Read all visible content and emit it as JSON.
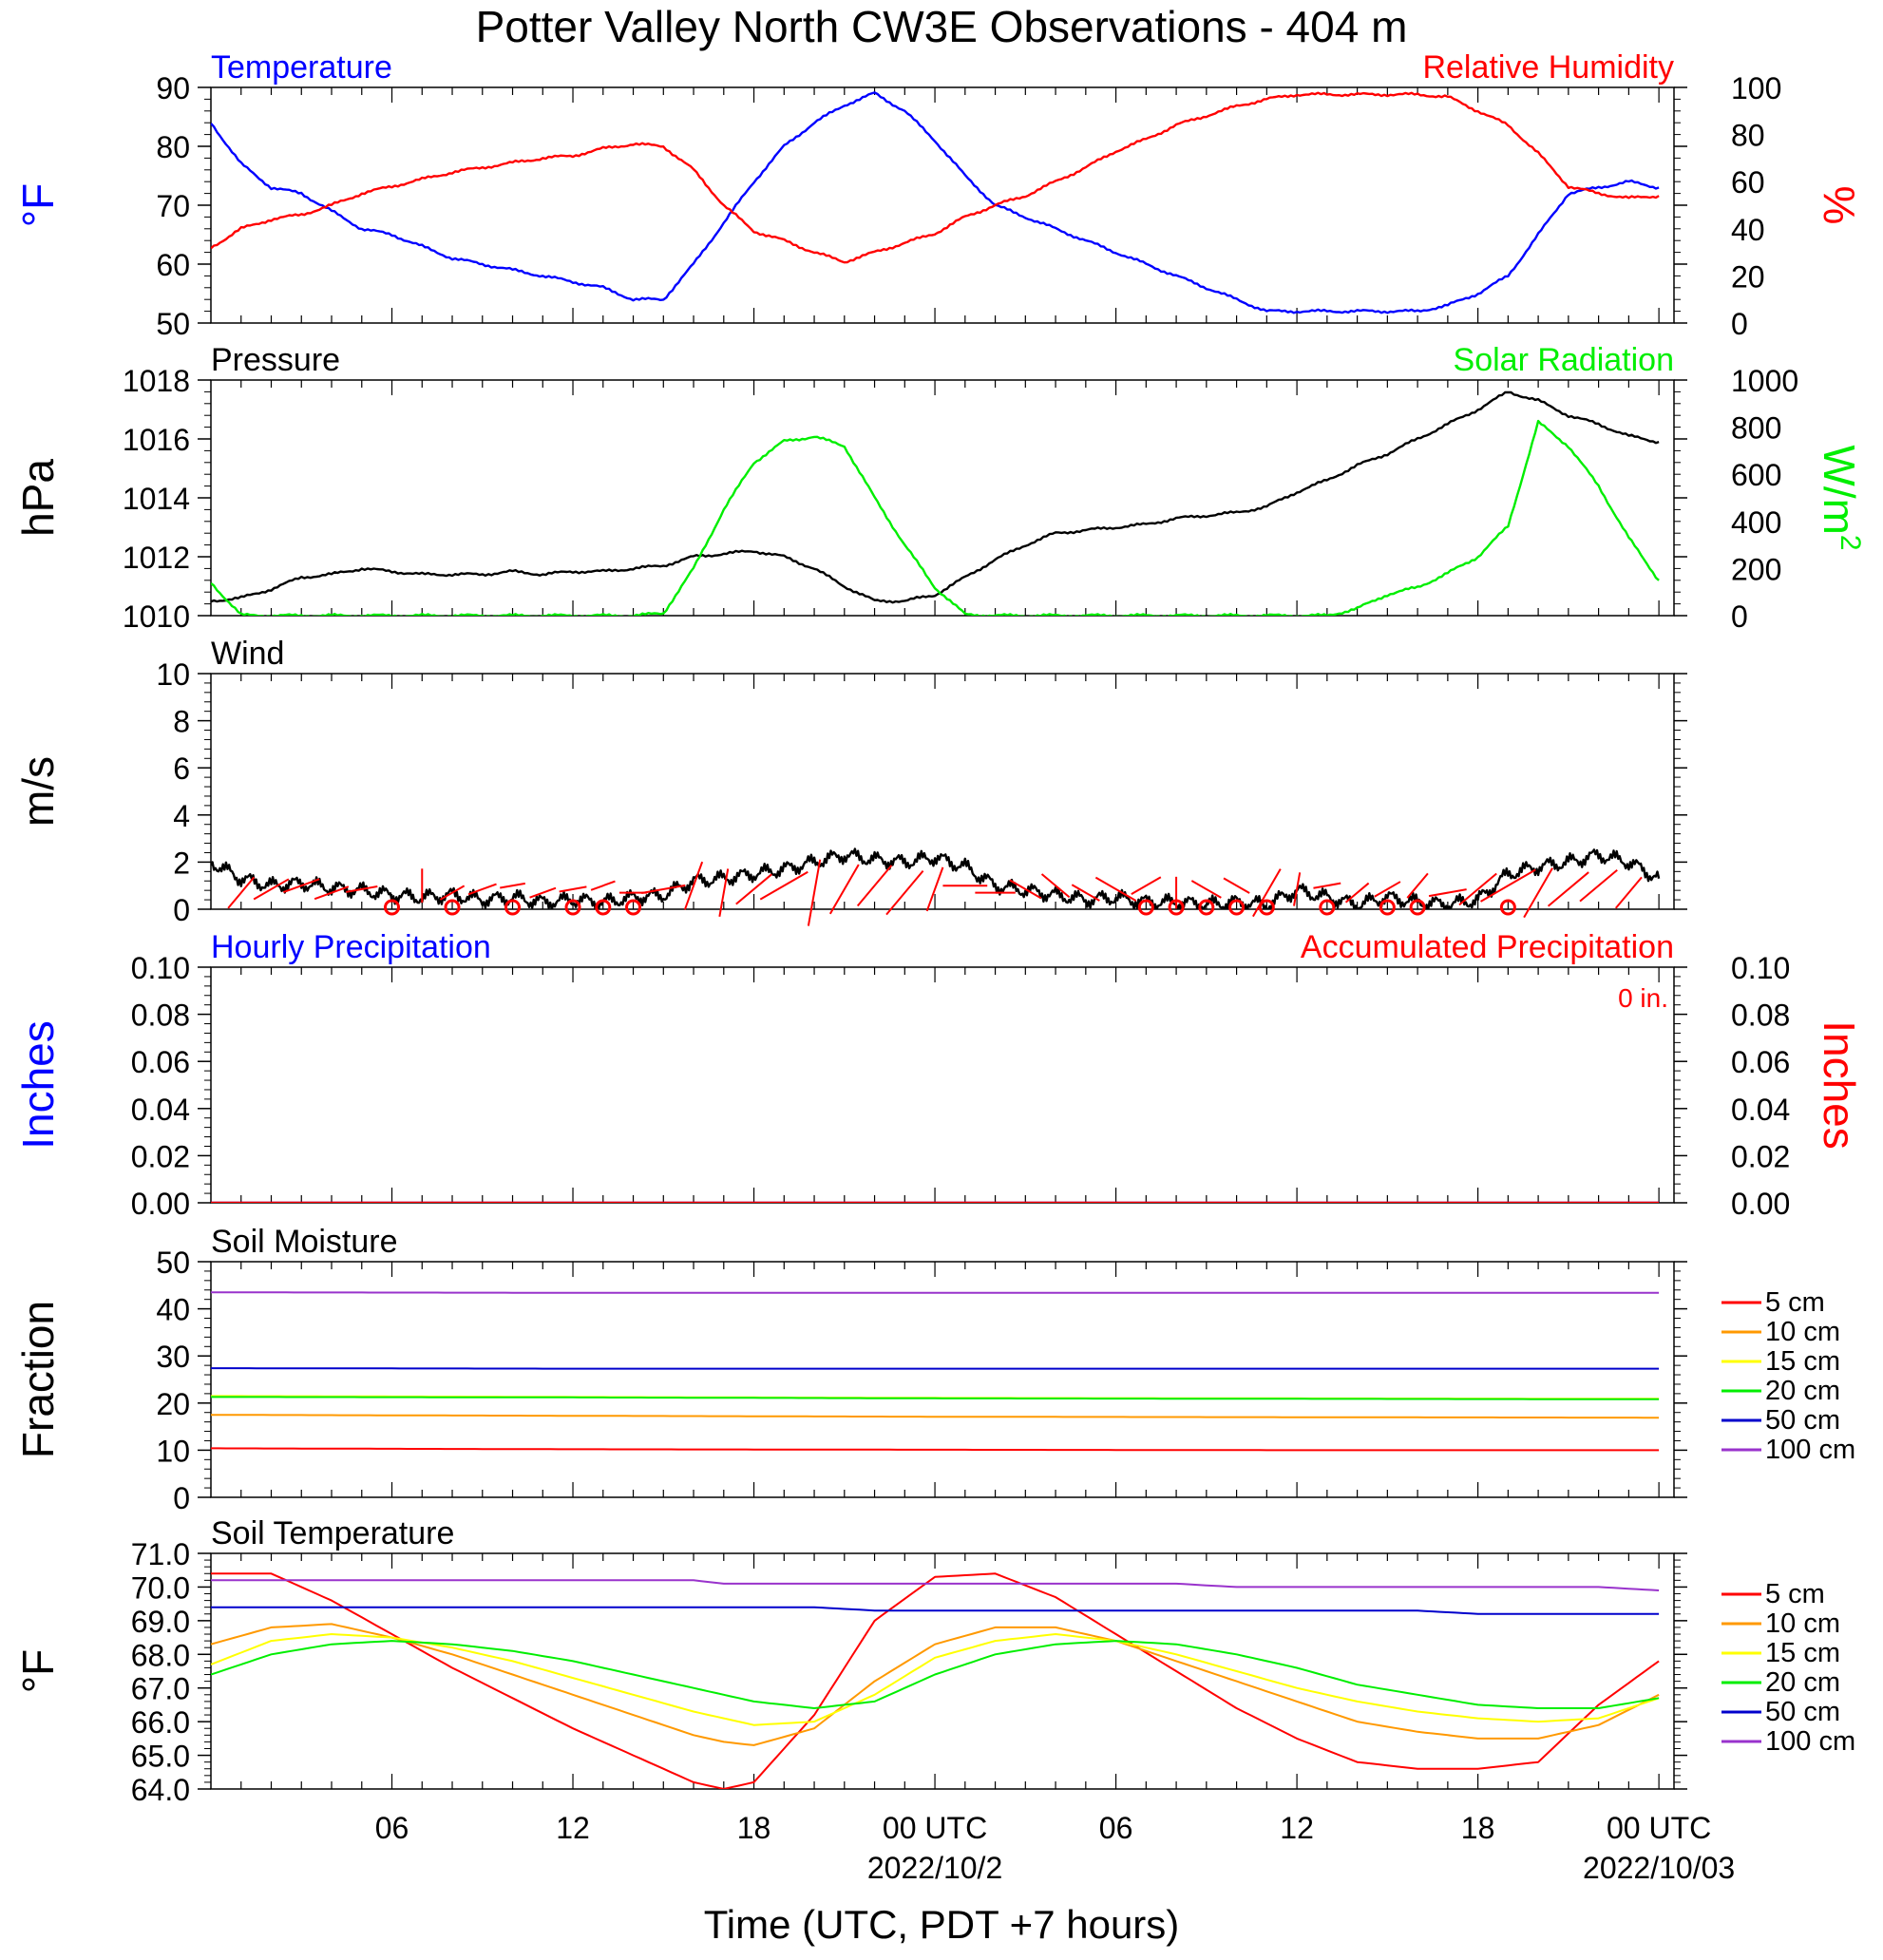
{
  "figure": {
    "title": "Potter Valley North CW3E Observations - 404 m",
    "xlabel": "Time (UTC, PDT +7 hours)",
    "x_ticks": [
      "06",
      "12",
      "18",
      "00 UTC",
      "06",
      "12",
      "18",
      "00 UTC"
    ],
    "x_dates": [
      "2022/10/2",
      "2022/10/03"
    ]
  },
  "colors": {
    "blue": "#0000ff",
    "red": "#ff0000",
    "green": "#00ee00",
    "black": "#000000",
    "orange": "#ff9900",
    "yellow": "#ffff00",
    "darkblue": "#0000cc",
    "purple": "#9933cc"
  },
  "chart_data": [
    {
      "type": "line",
      "name": "temperature-humidity",
      "label_left": "Temperature",
      "label_right": "Relative Humidity",
      "ylabel_left": "°F",
      "ylabel_right": "%",
      "ylim_left": [
        50,
        90
      ],
      "ylim_right": [
        0,
        100
      ],
      "yticks_left": [
        "90",
        "80",
        "70",
        "60",
        "50"
      ],
      "yticks_right": [
        "100",
        "80",
        "60",
        "40",
        "20",
        "0"
      ],
      "x_hours": [
        0,
        1,
        2,
        3,
        4,
        5,
        6,
        7,
        8,
        9,
        10,
        11,
        12,
        13,
        14,
        15,
        16,
        17,
        18,
        19,
        20,
        21,
        22,
        23,
        24,
        25,
        26,
        27,
        28,
        29,
        30,
        31,
        32,
        33,
        34,
        35,
        36,
        37,
        38,
        39,
        40,
        41,
        42,
        43,
        44,
        45,
        46,
        47,
        48
      ],
      "series": [
        {
          "name": "Temperature",
          "axis": "left",
          "color": "blue",
          "values": [
            84,
            77,
            73,
            72,
            69,
            66,
            65,
            63,
            61,
            60,
            59,
            58,
            57,
            56,
            54,
            54,
            60,
            67,
            74,
            80,
            84,
            87,
            89,
            86,
            81,
            75,
            70,
            68,
            66,
            64,
            62,
            60,
            58,
            56,
            54,
            52,
            52,
            52,
            52,
            52,
            52,
            53,
            55,
            58,
            65,
            72,
            73,
            74,
            73
          ]
        },
        {
          "name": "Relative Humidity",
          "axis": "right",
          "color": "red",
          "values": [
            32,
            40,
            44,
            46,
            50,
            55,
            58,
            61,
            64,
            66,
            68,
            70,
            71,
            74,
            76,
            75,
            65,
            50,
            39,
            35,
            30,
            26,
            30,
            34,
            38,
            45,
            50,
            54,
            60,
            66,
            73,
            78,
            84,
            88,
            92,
            95,
            97,
            97,
            97,
            97,
            97,
            96,
            90,
            84,
            72,
            58,
            55,
            53,
            54
          ]
        }
      ]
    },
    {
      "type": "line",
      "name": "pressure-solar",
      "label_left": "Pressure",
      "label_right": "Solar Radiation",
      "ylabel_left": "hPa",
      "ylabel_right": "W/m",
      "ylabel_right_sup": "2",
      "ylim_left": [
        1010,
        1018
      ],
      "ylim_right": [
        0,
        1000
      ],
      "yticks_left": [
        "1018",
        "1016",
        "1014",
        "1012",
        "1010"
      ],
      "yticks_right": [
        "1000",
        "800",
        "600",
        "400",
        "200",
        "0"
      ],
      "x_hours": [
        0,
        1,
        2,
        3,
        4,
        5,
        6,
        7,
        8,
        9,
        10,
        11,
        12,
        13,
        14,
        15,
        16,
        17,
        18,
        19,
        20,
        21,
        22,
        23,
        24,
        25,
        26,
        27,
        28,
        29,
        30,
        31,
        32,
        33,
        34,
        35,
        36,
        37,
        38,
        39,
        40,
        41,
        42,
        43,
        44,
        45,
        46,
        47,
        48
      ],
      "series": [
        {
          "name": "Pressure",
          "axis": "left",
          "color": "black",
          "values": [
            1010.5,
            1010.6,
            1010.9,
            1011.3,
            1011.4,
            1011.6,
            1011.5,
            1011.4,
            1011.4,
            1011.4,
            1011.5,
            1011.4,
            1011.5,
            1011.5,
            1011.6,
            1011.7,
            1012.0,
            1012.1,
            1012.2,
            1012.0,
            1011.6,
            1011.0,
            1010.5,
            1010.5,
            1010.7,
            1011.3,
            1011.9,
            1012.4,
            1012.8,
            1012.9,
            1013.0,
            1013.1,
            1013.3,
            1013.4,
            1013.5,
            1013.7,
            1014.2,
            1014.6,
            1015.1,
            1015.5,
            1016.0,
            1016.5,
            1017.0,
            1017.6,
            1017.3,
            1016.8,
            1016.5,
            1016.1,
            1015.9
          ]
        },
        {
          "name": "Solar Radiation",
          "axis": "right",
          "color": "green",
          "values": [
            140,
            2,
            0,
            0,
            0,
            0,
            0,
            0,
            0,
            0,
            0,
            0,
            0,
            0,
            0,
            10,
            200,
            450,
            650,
            740,
            760,
            720,
            500,
            300,
            120,
            5,
            0,
            0,
            0,
            0,
            0,
            0,
            0,
            0,
            0,
            0,
            0,
            0,
            30,
            90,
            120,
            180,
            250,
            380,
            820,
            720,
            550,
            330,
            150
          ]
        }
      ]
    },
    {
      "type": "line",
      "name": "wind",
      "label_left": "Wind",
      "ylabel_left": "m/s",
      "ylim_left": [
        0,
        10
      ],
      "yticks_left": [
        "10",
        "8",
        "6",
        "4",
        "2",
        "0"
      ],
      "x_hours": [
        0,
        1,
        2,
        3,
        4,
        5,
        6,
        7,
        8,
        9,
        10,
        11,
        12,
        13,
        14,
        15,
        16,
        17,
        18,
        19,
        20,
        21,
        22,
        23,
        24,
        25,
        26,
        27,
        28,
        29,
        30,
        31,
        32,
        33,
        34,
        35,
        36,
        37,
        38,
        39,
        40,
        41,
        42,
        43,
        44,
        45,
        46,
        47,
        48
      ],
      "series": [
        {
          "name": "Wind Speed",
          "axis": "left",
          "color": "black",
          "values": [
            2.0,
            1.3,
            1.0,
            1.1,
            0.9,
            0.8,
            0.6,
            0.5,
            0.6,
            0.4,
            0.5,
            0.3,
            0.4,
            0.3,
            0.5,
            0.6,
            1.2,
            1.3,
            1.5,
            1.7,
            2.0,
            2.3,
            2.1,
            2.0,
            2.2,
            1.8,
            1.0,
            0.8,
            0.6,
            0.4,
            0.5,
            0.3,
            0.3,
            0.2,
            0.3,
            0.2,
            0.8,
            0.5,
            0.2,
            0.5,
            0.3,
            0.2,
            0.4,
            1.5,
            1.8,
            2.0,
            2.3,
            2.0,
            1.3
          ]
        }
      ],
      "barbs_hours": [
        1,
        2,
        3,
        4,
        5,
        7,
        8,
        9,
        10,
        11,
        12,
        13,
        14,
        15,
        16,
        17,
        18,
        19,
        20,
        21,
        22,
        23,
        24,
        25,
        26,
        27,
        28,
        29,
        30,
        31,
        32,
        33,
        34,
        35,
        36,
        37,
        38,
        39,
        40,
        41,
        42,
        43,
        44,
        45,
        46,
        47
      ],
      "barbs_dir_deg": [
        220,
        240,
        250,
        250,
        260,
        0,
        240,
        250,
        260,
        250,
        260,
        250,
        270,
        260,
        200,
        190,
        230,
        240,
        190,
        210,
        220,
        220,
        200,
        270,
        270,
        300,
        310,
        300,
        120,
        60,
        0,
        300,
        300,
        210,
        190,
        260,
        230,
        240,
        220,
        260,
        230,
        240,
        210,
        230,
        230,
        220
      ],
      "barbs_speed": [
        1.2,
        1.2,
        1.1,
        1.0,
        0.8,
        0.9,
        0.6,
        0.7,
        0.5,
        0.6,
        0.6,
        0.5,
        0.6,
        1.4,
        1.7,
        1.6,
        1.5,
        1.9,
        2.5,
        2.0,
        1.8,
        2.0,
        1.5,
        1.4,
        1.2,
        1.0,
        1.0,
        0.8,
        1.5,
        0.9,
        0.8,
        0.9,
        0.7,
        1.9,
        0.9,
        0.6,
        0.7,
        0.7,
        0.8,
        1.1,
        1.6,
        2.3,
        2.0,
        1.8,
        1.6,
        1.2
      ],
      "calm_hours": [
        6,
        8,
        10,
        12,
        13,
        14,
        31,
        32,
        33,
        34,
        35,
        37,
        39,
        40,
        43
      ]
    },
    {
      "type": "line",
      "name": "precipitation",
      "label_left": "Hourly Precipitation",
      "label_right": "Accumulated Precipitation",
      "annotation": "0 in.",
      "ylabel_left": "Inches",
      "ylabel_right": "Inches",
      "ylim_left": [
        0,
        0.1
      ],
      "ylim_right": [
        0,
        0.1
      ],
      "yticks_left": [
        "0.10",
        "0.08",
        "0.06",
        "0.04",
        "0.02",
        "0.00"
      ],
      "yticks_right": [
        "0.10",
        "0.08",
        "0.06",
        "0.04",
        "0.02",
        "0.00"
      ],
      "x_hours": [
        0,
        48
      ],
      "series": [
        {
          "name": "Hourly Precipitation",
          "axis": "left",
          "color": "blue",
          "values": [
            0,
            0
          ]
        },
        {
          "name": "Accumulated Precipitation",
          "axis": "right",
          "color": "red",
          "values": [
            0,
            0
          ]
        }
      ]
    },
    {
      "type": "line",
      "name": "soil-moisture",
      "label_left": "Soil Moisture",
      "ylabel_left": "Fraction",
      "ylim_left": [
        0,
        50
      ],
      "yticks_left": [
        "50",
        "40",
        "30",
        "20",
        "10",
        "0"
      ],
      "x_hours": [
        0,
        12,
        24,
        36,
        48
      ],
      "series": [
        {
          "name": "5 cm",
          "color": "red",
          "values": [
            10.4,
            10.2,
            10.1,
            10.0,
            10.0
          ]
        },
        {
          "name": "10 cm",
          "color": "orange",
          "values": [
            17.5,
            17.3,
            17.1,
            17.0,
            16.9
          ]
        },
        {
          "name": "15 cm",
          "color": "yellow",
          "values": [
            21.5,
            21.3,
            21.1,
            21.0,
            20.9
          ]
        },
        {
          "name": "20 cm",
          "color": "green",
          "values": [
            21.3,
            21.2,
            21.0,
            20.9,
            20.8
          ]
        },
        {
          "name": "50 cm",
          "color": "darkblue",
          "values": [
            27.4,
            27.3,
            27.3,
            27.3,
            27.3
          ]
        },
        {
          "name": "100 cm",
          "color": "purple",
          "values": [
            43.5,
            43.4,
            43.4,
            43.4,
            43.4
          ]
        }
      ]
    },
    {
      "type": "line",
      "name": "soil-temperature",
      "label_left": "Soil Temperature",
      "ylabel_left": "°F",
      "ylim_left": [
        64,
        71
      ],
      "yticks_left": [
        "71.0",
        "70.0",
        "69.0",
        "68.0",
        "67.0",
        "66.0",
        "65.0",
        "64.0"
      ],
      "x_hours": [
        0,
        2,
        4,
        6,
        8,
        10,
        12,
        14,
        16,
        17,
        18,
        20,
        22,
        24,
        26,
        28,
        30,
        32,
        34,
        36,
        38,
        40,
        42,
        44,
        46,
        48
      ],
      "series": [
        {
          "name": "5 cm",
          "color": "red",
          "values": [
            70.4,
            70.4,
            69.6,
            68.6,
            67.6,
            66.7,
            65.8,
            65.0,
            64.2,
            64.0,
            64.2,
            66.2,
            69.0,
            70.3,
            70.4,
            69.7,
            68.6,
            67.5,
            66.4,
            65.5,
            64.8,
            64.6,
            64.6,
            64.8,
            66.5,
            67.8
          ]
        },
        {
          "name": "10 cm",
          "color": "orange",
          "values": [
            68.3,
            68.8,
            68.9,
            68.5,
            68.0,
            67.4,
            66.8,
            66.2,
            65.6,
            65.4,
            65.3,
            65.8,
            67.2,
            68.3,
            68.8,
            68.8,
            68.4,
            67.8,
            67.2,
            66.6,
            66.0,
            65.7,
            65.5,
            65.5,
            65.9,
            66.8
          ]
        },
        {
          "name": "15 cm",
          "color": "yellow",
          "values": [
            67.7,
            68.4,
            68.6,
            68.5,
            68.2,
            67.8,
            67.3,
            66.8,
            66.3,
            66.1,
            65.9,
            66.0,
            66.8,
            67.9,
            68.4,
            68.6,
            68.4,
            68.0,
            67.5,
            67.0,
            66.6,
            66.3,
            66.1,
            66.0,
            66.1,
            66.7
          ]
        },
        {
          "name": "20 cm",
          "color": "green",
          "values": [
            67.4,
            68.0,
            68.3,
            68.4,
            68.3,
            68.1,
            67.8,
            67.4,
            67.0,
            66.8,
            66.6,
            66.4,
            66.6,
            67.4,
            68.0,
            68.3,
            68.4,
            68.3,
            68.0,
            67.6,
            67.1,
            66.8,
            66.5,
            66.4,
            66.4,
            66.7
          ]
        },
        {
          "name": "50 cm",
          "color": "darkblue",
          "values": [
            69.4,
            69.4,
            69.4,
            69.4,
            69.4,
            69.4,
            69.4,
            69.4,
            69.4,
            69.4,
            69.4,
            69.4,
            69.3,
            69.3,
            69.3,
            69.3,
            69.3,
            69.3,
            69.3,
            69.3,
            69.3,
            69.3,
            69.2,
            69.2,
            69.2,
            69.2
          ]
        },
        {
          "name": "100 cm",
          "color": "purple",
          "values": [
            70.2,
            70.2,
            70.2,
            70.2,
            70.2,
            70.2,
            70.2,
            70.2,
            70.2,
            70.1,
            70.1,
            70.1,
            70.1,
            70.1,
            70.1,
            70.1,
            70.1,
            70.1,
            70.0,
            70.0,
            70.0,
            70.0,
            70.0,
            70.0,
            70.0,
            69.9
          ]
        }
      ]
    }
  ]
}
